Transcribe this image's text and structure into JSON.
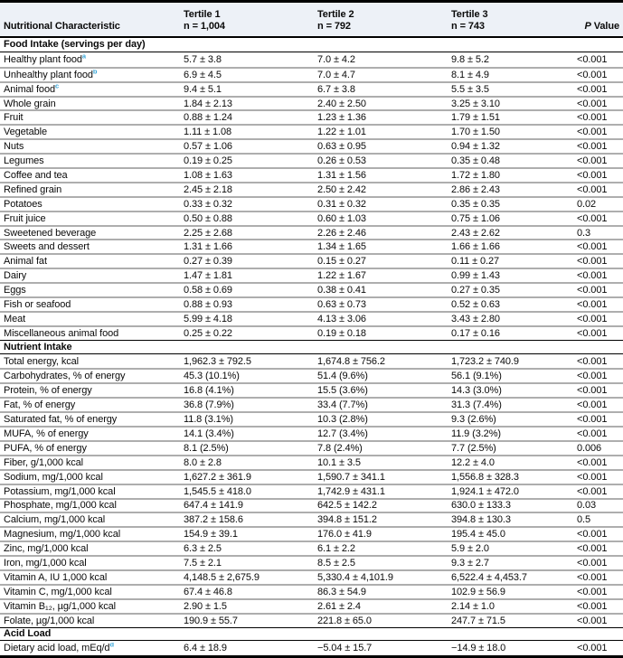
{
  "colors": {
    "header_background": "#edf1f7",
    "footnote_marker": "#3ba7d9",
    "row_separator": "#aeaeae",
    "rule_black": "#000000"
  },
  "table": {
    "header": {
      "label": "Nutritional Characteristic",
      "tertile1": {
        "title": "Tertile 1",
        "n": "n = 1,004"
      },
      "tertile2": {
        "title": "Tertile 2",
        "n": "n = 792"
      },
      "tertile3": {
        "title": "Tertile 3",
        "n": "n = 743"
      },
      "p_italic": "P",
      "p_rest": " Value"
    },
    "sections": [
      {
        "title": "Food Intake (servings per day)",
        "rows": [
          {
            "label": "Healthy plant food",
            "sup": "a",
            "t1": "5.7 ± 3.8",
            "t2": "7.0 ± 4.2",
            "t3": "9.8 ± 5.2",
            "p": "<0.001"
          },
          {
            "label": "Unhealthy plant food",
            "sup": "b",
            "t1": "6.9 ± 4.5",
            "t2": "7.0 ± 4.7",
            "t3": "8.1 ± 4.9",
            "p": "<0.001"
          },
          {
            "label": "Animal food",
            "sup": "c",
            "t1": "9.4 ± 5.1",
            "t2": "6.7 ± 3.8",
            "t3": "5.5 ± 3.5",
            "p": "<0.001"
          },
          {
            "label": "Whole grain",
            "sup": "",
            "t1": "1.84 ± 2.13",
            "t2": "2.40 ± 2.50",
            "t3": "3.25 ± 3.10",
            "p": "<0.001"
          },
          {
            "label": "Fruit",
            "sup": "",
            "t1": "0.88 ± 1.24",
            "t2": "1.23 ± 1.36",
            "t3": "1.79 ± 1.51",
            "p": "<0.001"
          },
          {
            "label": "Vegetable",
            "sup": "",
            "t1": "1.11 ± 1.08",
            "t2": "1.22 ± 1.01",
            "t3": "1.70 ± 1.50",
            "p": "<0.001"
          },
          {
            "label": "Nuts",
            "sup": "",
            "t1": "0.57 ± 1.06",
            "t2": "0.63 ± 0.95",
            "t3": "0.94 ± 1.32",
            "p": "<0.001"
          },
          {
            "label": "Legumes",
            "sup": "",
            "t1": "0.19 ± 0.25",
            "t2": "0.26 ± 0.53",
            "t3": "0.35 ± 0.48",
            "p": "<0.001"
          },
          {
            "label": "Coffee and tea",
            "sup": "",
            "t1": "1.08 ± 1.63",
            "t2": "1.31 ± 1.56",
            "t3": "1.72 ± 1.80",
            "p": "<0.001"
          },
          {
            "label": "Refined grain",
            "sup": "",
            "t1": "2.45 ± 2.18",
            "t2": "2.50 ± 2.42",
            "t3": "2.86 ± 2.43",
            "p": "<0.001"
          },
          {
            "label": "Potatoes",
            "sup": "",
            "t1": "0.33 ± 0.32",
            "t2": "0.31 ± 0.32",
            "t3": "0.35 ± 0.35",
            "p": "0.02"
          },
          {
            "label": "Fruit juice",
            "sup": "",
            "t1": "0.50 ± 0.88",
            "t2": "0.60 ± 1.03",
            "t3": "0.75 ± 1.06",
            "p": "<0.001"
          },
          {
            "label": "Sweetened beverage",
            "sup": "",
            "t1": "2.25 ± 2.68",
            "t2": "2.26 ± 2.46",
            "t3": "2.43 ± 2.62",
            "p": "0.3"
          },
          {
            "label": "Sweets and dessert",
            "sup": "",
            "t1": "1.31 ± 1.66",
            "t2": "1.34 ± 1.65",
            "t3": "1.66 ± 1.66",
            "p": "<0.001"
          },
          {
            "label": "Animal fat",
            "sup": "",
            "t1": "0.27 ± 0.39",
            "t2": "0.15 ± 0.27",
            "t3": "0.11 ± 0.27",
            "p": "<0.001"
          },
          {
            "label": "Dairy",
            "sup": "",
            "t1": "1.47 ± 1.81",
            "t2": "1.22 ± 1.67",
            "t3": "0.99 ± 1.43",
            "p": "<0.001"
          },
          {
            "label": "Eggs",
            "sup": "",
            "t1": "0.58 ± 0.69",
            "t2": "0.38 ± 0.41",
            "t3": "0.27 ± 0.35",
            "p": "<0.001"
          },
          {
            "label": "Fish or seafood",
            "sup": "",
            "t1": "0.88 ± 0.93",
            "t2": "0.63 ± 0.73",
            "t3": "0.52 ± 0.63",
            "p": "<0.001"
          },
          {
            "label": "Meat",
            "sup": "",
            "t1": "5.99 ± 4.18",
            "t2": "4.13 ± 3.06",
            "t3": "3.43 ± 2.80",
            "p": "<0.001"
          },
          {
            "label": "Miscellaneous animal food",
            "sup": "",
            "t1": "0.25 ± 0.22",
            "t2": "0.19 ± 0.18",
            "t3": "0.17 ± 0.16",
            "p": "<0.001"
          }
        ]
      },
      {
        "title": "Nutrient Intake",
        "rows": [
          {
            "label": "Total energy, kcal",
            "sup": "",
            "t1": "1,962.3 ± 792.5",
            "t2": "1,674.8 ± 756.2",
            "t3": "1,723.2 ± 740.9",
            "p": "<0.001"
          },
          {
            "label": "Carbohydrates, % of energy",
            "sup": "",
            "t1": "45.3 (10.1%)",
            "t2": "51.4 (9.6%)",
            "t3": "56.1 (9.1%)",
            "p": "<0.001"
          },
          {
            "label": "Protein, % of energy",
            "sup": "",
            "t1": "16.8 (4.1%)",
            "t2": "15.5 (3.6%)",
            "t3": "14.3 (3.0%)",
            "p": "<0.001"
          },
          {
            "label": "Fat, % of energy",
            "sup": "",
            "t1": "36.8 (7.9%)",
            "t2": "33.4 (7.7%)",
            "t3": "31.3 (7.4%)",
            "p": "<0.001"
          },
          {
            "label": "Saturated fat, % of energy",
            "sup": "",
            "t1": "11.8 (3.1%)",
            "t2": "10.3 (2.8%)",
            "t3": "9.3 (2.6%)",
            "p": "<0.001"
          },
          {
            "label": "MUFA, % of energy",
            "sup": "",
            "t1": "14.1 (3.4%)",
            "t2": "12.7 (3.4%)",
            "t3": "11.9 (3.2%)",
            "p": "<0.001"
          },
          {
            "label": "PUFA, % of energy",
            "sup": "",
            "t1": "8.1 (2.5%)",
            "t2": "7.8 (2.4%)",
            "t3": "7.7 (2.5%)",
            "p": "0.006"
          },
          {
            "label": "Fiber, g/1,000 kcal",
            "sup": "",
            "t1": "8.0 ± 2.8",
            "t2": "10.1 ± 3.5",
            "t3": "12.2 ± 4.0",
            "p": "<0.001"
          },
          {
            "label": "Sodium, mg/1,000 kcal",
            "sup": "",
            "t1": "1,627.2 ± 361.9",
            "t2": "1,590.7 ± 341.1",
            "t3": "1,556.8 ± 328.3",
            "p": "<0.001"
          },
          {
            "label": "Potassium, mg/1,000 kcal",
            "sup": "",
            "t1": "1,545.5 ± 418.0",
            "t2": "1,742.9 ± 431.1",
            "t3": "1,924.1 ± 472.0",
            "p": "<0.001"
          },
          {
            "label": "Phosphate, mg/1,000 kcal",
            "sup": "",
            "t1": "647.4 ± 141.9",
            "t2": "642.5 ± 142.2",
            "t3": "630.0 ± 133.3",
            "p": "0.03"
          },
          {
            "label": "Calcium, mg/1,000 kcal",
            "sup": "",
            "t1": "387.2 ± 158.6",
            "t2": "394.8 ± 151.2",
            "t3": "394.8 ± 130.3",
            "p": "0.5"
          },
          {
            "label": "Magnesium, mg/1,000 kcal",
            "sup": "",
            "t1": "154.9 ± 39.1",
            "t2": "176.0 ± 41.9",
            "t3": "195.4 ± 45.0",
            "p": "<0.001"
          },
          {
            "label": "Zinc, mg/1,000 kcal",
            "sup": "",
            "t1": "6.3 ± 2.5",
            "t2": "6.1 ± 2.2",
            "t3": "5.9 ± 2.0",
            "p": "<0.001"
          },
          {
            "label": "Iron, mg/1,000 kcal",
            "sup": "",
            "t1": "7.5 ± 2.1",
            "t2": "8.5 ± 2.5",
            "t3": "9.3 ± 2.7",
            "p": "<0.001"
          },
          {
            "label": "Vitamin A, IU 1,000 kcal",
            "sup": "",
            "t1": "4,148.5 ± 2,675.9",
            "t2": "5,330.4 ± 4,101.9",
            "t3": "6,522.4 ± 4,453.7",
            "p": "<0.001"
          },
          {
            "label": "Vitamin C, mg/1,000 kcal",
            "sup": "",
            "t1": "67.4 ± 46.8",
            "t2": "86.3 ± 54.9",
            "t3": "102.9 ± 56.9",
            "p": "<0.001"
          },
          {
            "label": "Vitamin B₁₂, µg/1,000 kcal",
            "sup": "",
            "t1": "2.90 ± 1.5",
            "t2": "2.61 ± 2.4",
            "t3": "2.14 ± 1.0",
            "p": "<0.001"
          },
          {
            "label": "Folate, µg/1,000 kcal",
            "sup": "",
            "t1": "190.9 ± 55.7",
            "t2": "221.8 ± 65.0",
            "t3": "247.7 ± 71.5",
            "p": "<0.001"
          }
        ]
      },
      {
        "title": "Acid Load",
        "rows": [
          {
            "label": "Dietary acid load, mEq/d",
            "sup": "d",
            "t1": "6.4 ± 18.9",
            "t2": "−5.04 ± 15.7",
            "t3": "−14.9 ± 18.0",
            "p": "<0.001"
          }
        ]
      }
    ]
  }
}
